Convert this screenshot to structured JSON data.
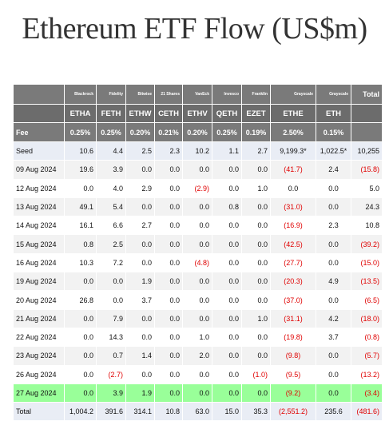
{
  "title": "Ethereum ETF Flow (US$m)",
  "colors": {
    "header_bg": "#7a7a7a",
    "highlight_row": "#99ff99",
    "negative": "#e00000"
  },
  "issuers": [
    "Blackrock",
    "Fidelity",
    "Bitwise",
    "21 Shares",
    "VanEck",
    "Invesco",
    "Franklin",
    "Grayscale",
    "Grayscale"
  ],
  "total_label": "Total",
  "tickers": [
    "ETHA",
    "FETH",
    "ETHW",
    "CETH",
    "ETHV",
    "QETH",
    "EZET",
    "ETHE",
    "ETH"
  ],
  "fee_label": "Fee",
  "fees": [
    "0.25%",
    "0.25%",
    "0.20%",
    "0.21%",
    "0.20%",
    "0.25%",
    "0.19%",
    "2.50%",
    "0.15%"
  ],
  "rows": [
    {
      "label": "Seed",
      "cells": [
        "10.6",
        "4.4",
        "2.5",
        "2.3",
        "10.2",
        "1.1",
        "2.7",
        "9,199.3*",
        "1,022.5*",
        "10,255"
      ]
    },
    {
      "label": "09 Aug 2024",
      "cells": [
        "19.6",
        "3.9",
        "0.0",
        "0.0",
        "0.0",
        "0.0",
        "0.0",
        "(41.7)",
        "2.4",
        "(15.8)"
      ]
    },
    {
      "label": "12 Aug 2024",
      "cells": [
        "0.0",
        "4.0",
        "2.9",
        "0.0",
        "(2.9)",
        "0.0",
        "1.0",
        "0.0",
        "0.0",
        "5.0"
      ]
    },
    {
      "label": "13 Aug 2024",
      "cells": [
        "49.1",
        "5.4",
        "0.0",
        "0.0",
        "0.0",
        "0.8",
        "0.0",
        "(31.0)",
        "0.0",
        "24.3"
      ]
    },
    {
      "label": "14 Aug 2024",
      "cells": [
        "16.1",
        "6.6",
        "2.7",
        "0.0",
        "0.0",
        "0.0",
        "0.0",
        "(16.9)",
        "2.3",
        "10.8"
      ]
    },
    {
      "label": "15 Aug 2024",
      "cells": [
        "0.8",
        "2.5",
        "0.0",
        "0.0",
        "0.0",
        "0.0",
        "0.0",
        "(42.5)",
        "0.0",
        "(39.2)"
      ]
    },
    {
      "label": "16 Aug 2024",
      "cells": [
        "10.3",
        "7.2",
        "0.0",
        "0.0",
        "(4.8)",
        "0.0",
        "0.0",
        "(27.7)",
        "0.0",
        "(15.0)"
      ]
    },
    {
      "label": "19 Aug 2024",
      "cells": [
        "0.0",
        "0.0",
        "1.9",
        "0.0",
        "0.0",
        "0.0",
        "0.0",
        "(20.3)",
        "4.9",
        "(13.5)"
      ]
    },
    {
      "label": "20 Aug 2024",
      "cells": [
        "26.8",
        "0.0",
        "3.7",
        "0.0",
        "0.0",
        "0.0",
        "0.0",
        "(37.0)",
        "0.0",
        "(6.5)"
      ]
    },
    {
      "label": "21 Aug 2024",
      "cells": [
        "0.0",
        "7.9",
        "0.0",
        "0.0",
        "0.0",
        "0.0",
        "1.0",
        "(31.1)",
        "4.2",
        "(18.0)"
      ]
    },
    {
      "label": "22 Aug 2024",
      "cells": [
        "0.0",
        "14.3",
        "0.0",
        "0.0",
        "1.0",
        "0.0",
        "0.0",
        "(19.8)",
        "3.7",
        "(0.8)"
      ]
    },
    {
      "label": "23 Aug 2024",
      "cells": [
        "0.0",
        "0.7",
        "1.4",
        "0.0",
        "2.0",
        "0.0",
        "0.0",
        "(9.8)",
        "0.0",
        "(5.7)"
      ]
    },
    {
      "label": "26 Aug 2024",
      "cells": [
        "0.0",
        "(2.7)",
        "0.0",
        "0.0",
        "0.0",
        "0.0",
        "(1.0)",
        "(9.5)",
        "0.0",
        "(13.2)"
      ]
    },
    {
      "label": "27 Aug 2024",
      "cells": [
        "0.0",
        "3.9",
        "1.9",
        "0.0",
        "0.0",
        "0.0",
        "0.0",
        "(9.2)",
        "0.0",
        "(3.4)"
      ],
      "highlight": true
    },
    {
      "label": "Total",
      "cells": [
        "1,004.2",
        "391.6",
        "314.1",
        "10.8",
        "63.0",
        "15.0",
        "35.3",
        "(2,551.2)",
        "235.6",
        "(481.6)"
      ]
    }
  ]
}
